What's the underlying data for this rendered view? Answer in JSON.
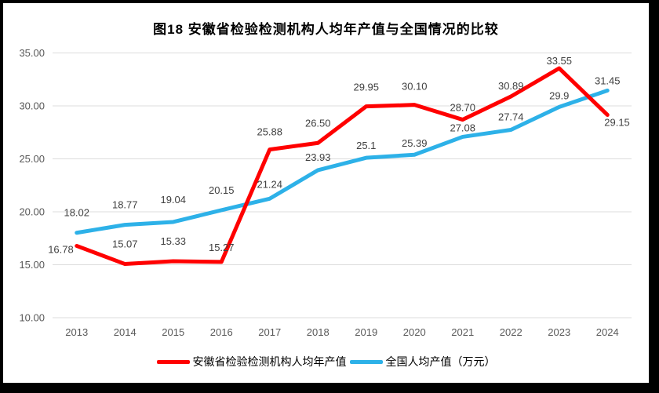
{
  "frame": {
    "border_color": "#000000",
    "background": "#ffffff"
  },
  "chart_data": {
    "type": "line",
    "title": "图18 安徽省检验检测机构人均年产值与全国情况的比较",
    "x": [
      "2013",
      "2014",
      "2015",
      "2016",
      "2017",
      "2018",
      "2019",
      "2020",
      "2021",
      "2022",
      "2023",
      "2024"
    ],
    "series": [
      {
        "name": "安徽省检验检测机构人均年产值",
        "color": "#FF0000",
        "values": [
          16.78,
          15.07,
          15.33,
          15.27,
          25.88,
          26.5,
          29.95,
          30.1,
          28.7,
          30.89,
          33.55,
          29.15
        ],
        "labels": [
          "16.78",
          "15.07",
          "15.33",
          "15.27",
          "25.88",
          "26.50",
          "29.95",
          "30.10",
          "28.70",
          "30.89",
          "33.55",
          "29.15"
        ],
        "label_pos": [
          {
            "dx": -4,
            "dy": 9,
            "anchor": "end"
          },
          {
            "dy": -21
          },
          {
            "dy": -21
          },
          {
            "dy": -14
          },
          {
            "dy": -18
          },
          {
            "dy": -21
          },
          {
            "dy": -20
          },
          {
            "dy": -19
          },
          {
            "dy": -11
          },
          {
            "dy": -9
          },
          {
            "dy": -5
          },
          {
            "dx": -4,
            "dy": 14,
            "anchor": "start"
          }
        ]
      },
      {
        "name": "全国人均产值（万元）",
        "color": "#2DB1E8",
        "values": [
          18.02,
          18.77,
          19.04,
          20.15,
          21.24,
          23.93,
          25.1,
          25.39,
          27.08,
          27.74,
          29.9,
          31.45
        ],
        "labels": [
          "18.02",
          "18.77",
          "19.04",
          "20.15",
          "21.24",
          "23.93",
          "25.1",
          "25.39",
          "27.08",
          "27.74",
          "29.9",
          "31.45"
        ],
        "label_pos": [
          {
            "dy": -21
          },
          {
            "dy": -21
          },
          {
            "dy": -24
          },
          {
            "dy": -21
          },
          {
            "dy": -14
          },
          {
            "dy": -12
          },
          {
            "dy": -11
          },
          {
            "dy": -10
          },
          {
            "dy": -7
          },
          {
            "dy": -12
          },
          {
            "dy": -10
          },
          {
            "dy": -8
          }
        ]
      }
    ],
    "ylim": [
      10,
      35
    ],
    "yticks": [
      "10.00",
      "15.00",
      "20.00",
      "25.00",
      "30.00",
      "35.00"
    ],
    "ytick_values": [
      10,
      15,
      20,
      25,
      30,
      35
    ],
    "xlabel": "",
    "ylabel": "",
    "grid": "horizontal",
    "legend_position": "bottom",
    "colors": {
      "grid": "#DCDCDC",
      "axis_text": "#595959",
      "label_text": "#404040",
      "title_text": "#000000"
    }
  }
}
